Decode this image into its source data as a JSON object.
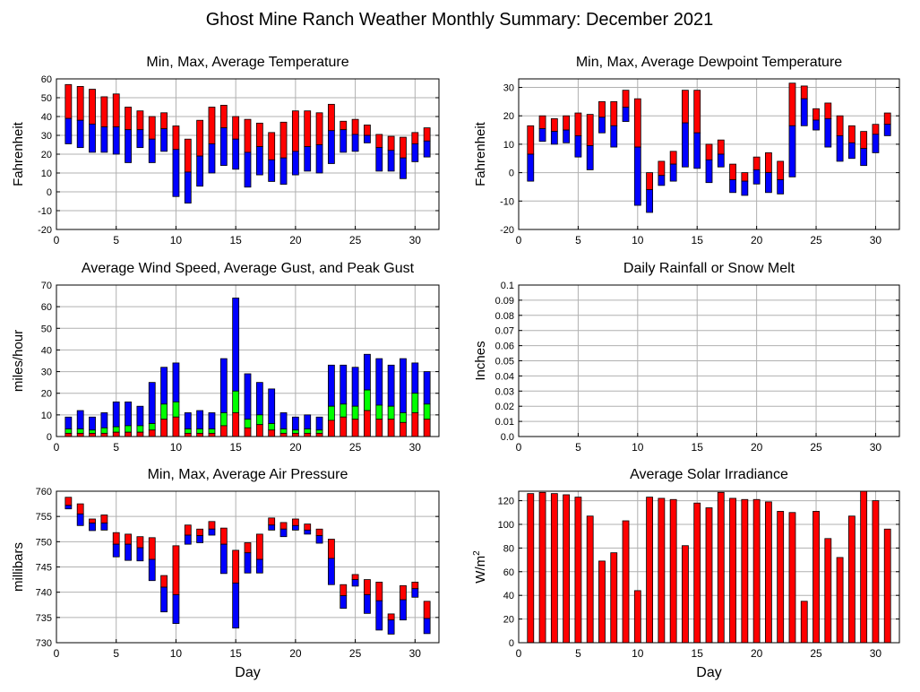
{
  "page_title": "Ghost Mine Ranch Weather Monthly Summary: December 2021",
  "colors": {
    "max": "#ff0000",
    "avg_or_min": "#0000ff",
    "gust": "#00ff00",
    "grid": "#b0b0b0",
    "frame": "#000000"
  },
  "chart_data": [
    {
      "id": "temp",
      "type": "bar",
      "title": "Min, Max, Average Temperature",
      "ylabel": "Fahrenheit",
      "xlabel": "",
      "ylim": [
        -20,
        60
      ],
      "yticks": [
        -20,
        -10,
        0,
        10,
        20,
        30,
        40,
        50,
        60
      ],
      "xlim": [
        0,
        32
      ],
      "xticks": [
        0,
        5,
        10,
        15,
        20,
        25,
        30
      ],
      "grid": true,
      "encoding": "range",
      "x": [
        1,
        2,
        3,
        4,
        5,
        6,
        7,
        8,
        9,
        10,
        11,
        12,
        13,
        14,
        15,
        16,
        17,
        18,
        19,
        20,
        21,
        22,
        23,
        24,
        25,
        26,
        27,
        28,
        29,
        30,
        31
      ],
      "series": [
        {
          "name": "Max",
          "color": "#ff0000",
          "values": [
            57,
            56,
            54.5,
            50.5,
            52,
            45,
            43,
            40,
            42,
            35,
            28,
            38,
            45,
            46,
            40,
            38.5,
            36.5,
            31.5,
            37,
            43,
            43,
            42,
            46.5,
            37.5,
            38.5,
            35.5,
            30.5,
            29.5,
            29,
            31.5,
            34
          ]
        },
        {
          "name": "Average",
          "color": "#0000ff",
          "values": [
            39,
            38,
            36,
            34.5,
            34.5,
            33,
            33,
            28,
            33.5,
            22.5,
            10.5,
            19,
            25.5,
            34,
            28,
            21,
            24,
            17,
            18,
            21.5,
            24,
            25,
            32.5,
            33,
            30.5,
            30,
            23.5,
            22,
            18,
            25.5,
            27
          ]
        },
        {
          "name": "Min",
          "color": "#0000ff",
          "values": [
            25.5,
            23.5,
            21,
            21,
            20,
            15.5,
            23.5,
            15.5,
            21.5,
            -2.5,
            -6,
            3,
            10,
            14,
            12,
            2.5,
            9,
            5.5,
            4,
            9,
            11,
            10,
            15,
            21,
            21.5,
            26,
            11,
            11,
            7,
            16,
            18.5
          ]
        }
      ]
    },
    {
      "id": "dew",
      "type": "bar",
      "title": "Min, Max, Average Dewpoint Temperature",
      "ylabel": "Fahrenheit",
      "xlabel": "",
      "ylim": [
        -20,
        33
      ],
      "yticks": [
        -20,
        -10,
        0,
        10,
        20,
        30
      ],
      "xlim": [
        0,
        32
      ],
      "xticks": [
        0,
        5,
        10,
        15,
        20,
        25,
        30
      ],
      "grid": true,
      "encoding": "range",
      "x": [
        1,
        2,
        3,
        4,
        5,
        6,
        7,
        8,
        9,
        10,
        11,
        12,
        13,
        14,
        15,
        16,
        17,
        18,
        19,
        20,
        21,
        22,
        23,
        24,
        25,
        26,
        27,
        28,
        29,
        30,
        31
      ],
      "series": [
        {
          "name": "Max",
          "color": "#ff0000",
          "values": [
            16.5,
            20,
            19,
            20,
            21,
            20.5,
            25,
            25,
            29,
            26,
            0,
            4,
            7.5,
            29,
            29,
            10,
            11.5,
            3,
            0,
            5.5,
            7,
            4,
            31.5,
            30.5,
            22.5,
            24.5,
            20,
            16.5,
            14.5,
            17,
            21
          ]
        },
        {
          "name": "Average",
          "color": "#0000ff",
          "values": [
            6.5,
            15.5,
            14.5,
            15,
            13,
            9.5,
            19.5,
            16.5,
            23,
            9,
            -6,
            -1,
            3,
            17.5,
            14,
            4.5,
            6.5,
            -2.5,
            -3,
            1,
            0,
            -2.5,
            16.5,
            26,
            18.5,
            19,
            13,
            10.5,
            8.5,
            13.5,
            17
          ]
        },
        {
          "name": "Min",
          "color": "#0000ff",
          "values": [
            -3,
            11,
            10,
            10.5,
            5.5,
            1,
            14,
            9,
            18,
            -11.5,
            -14,
            -4.5,
            -3,
            2,
            1.5,
            -3.5,
            2,
            -7,
            -8,
            -4,
            -7,
            -7.5,
            -1.5,
            16.5,
            15,
            9,
            4,
            5,
            2.5,
            7,
            13
          ]
        }
      ]
    },
    {
      "id": "wind",
      "type": "bar",
      "title": "Average Wind Speed, Average Gust, and Peak Gust",
      "ylabel": "miles/hour",
      "xlabel": "",
      "ylim": [
        0,
        70
      ],
      "yticks": [
        0,
        10,
        20,
        30,
        40,
        50,
        60,
        70
      ],
      "xlim": [
        0,
        32
      ],
      "xticks": [
        0,
        5,
        10,
        15,
        20,
        25,
        30
      ],
      "grid": true,
      "encoding": "stacked",
      "x": [
        1,
        2,
        3,
        4,
        5,
        6,
        7,
        8,
        9,
        10,
        11,
        12,
        13,
        14,
        15,
        16,
        17,
        18,
        19,
        20,
        21,
        22,
        23,
        24,
        25,
        26,
        27,
        28,
        29,
        30,
        31
      ],
      "series": [
        {
          "name": "Peak Gust",
          "color": "#0000ff",
          "values": [
            9,
            12,
            9,
            11,
            16,
            16,
            14,
            25,
            32,
            34,
            11,
            12,
            11,
            36,
            64,
            29,
            25,
            22,
            11,
            9,
            10,
            9,
            33,
            33,
            32,
            38,
            36,
            33,
            36,
            34,
            30
          ]
        },
        {
          "name": "Average Gust",
          "color": "#00ff00",
          "values": [
            3.5,
            3.5,
            3,
            4,
            4.5,
            5,
            5,
            6,
            15,
            16,
            3.5,
            3.5,
            3.5,
            11,
            21,
            8,
            10,
            6,
            3.5,
            3,
            3.5,
            3,
            14,
            15,
            14,
            21.5,
            14.5,
            14,
            11,
            20,
            15
          ]
        },
        {
          "name": "Average Wind Speed",
          "color": "#ff0000",
          "values": [
            1.5,
            1.5,
            1.5,
            1.5,
            2,
            2,
            2,
            3,
            8,
            9,
            1.5,
            1.5,
            1.5,
            5,
            11,
            4,
            5.5,
            3,
            1.5,
            1.5,
            1.5,
            1.5,
            7.5,
            9,
            8,
            12,
            8,
            8,
            6.5,
            11,
            8
          ]
        }
      ]
    },
    {
      "id": "rain",
      "type": "bar",
      "title": "Daily Rainfall or Snow Melt",
      "ylabel": "Inches",
      "xlabel": "",
      "ylim": [
        0,
        0.1
      ],
      "yticks": [
        0,
        0.01,
        0.02,
        0.03,
        0.04,
        0.05,
        0.06,
        0.07,
        0.08,
        0.09,
        0.1
      ],
      "ytick_labels": [
        "0.0",
        "0.01",
        "0.02",
        "0.03",
        "0.04",
        "0.05",
        "0.06",
        "0.07",
        "0.08",
        "0.09",
        "0.1"
      ],
      "xlim": [
        0,
        32
      ],
      "xticks": [
        0,
        5,
        10,
        15,
        20,
        25,
        30
      ],
      "grid": true,
      "encoding": "simple",
      "x": [],
      "series": []
    },
    {
      "id": "pressure",
      "type": "bar",
      "title": "Min, Max, Average Air Pressure",
      "ylabel": "millibars",
      "xlabel": "Day",
      "ylim": [
        730,
        760
      ],
      "yticks": [
        730,
        735,
        740,
        745,
        750,
        755,
        760
      ],
      "xlim": [
        0,
        32
      ],
      "xticks": [
        0,
        5,
        10,
        15,
        20,
        25,
        30
      ],
      "grid": true,
      "encoding": "range",
      "x": [
        1,
        2,
        3,
        4,
        5,
        6,
        7,
        8,
        9,
        10,
        11,
        12,
        13,
        14,
        15,
        16,
        17,
        18,
        19,
        20,
        21,
        22,
        23,
        24,
        25,
        26,
        27,
        28,
        29,
        30,
        31
      ],
      "series": [
        {
          "name": "Max",
          "color": "#ff0000",
          "values": [
            758.8,
            757.5,
            754.5,
            755.3,
            751.8,
            751.5,
            751,
            750.8,
            743.3,
            749.2,
            753.3,
            752.5,
            754,
            752.7,
            748.3,
            749.8,
            751.5,
            754.7,
            753.8,
            754.5,
            753.5,
            752.5,
            750.5,
            741.5,
            743.5,
            742.5,
            742,
            735.7,
            741.3,
            742,
            738.2
          ]
        },
        {
          "name": "Average",
          "color": "#0000ff",
          "values": [
            757.2,
            755.5,
            753.7,
            753.7,
            749.5,
            749.5,
            748.8,
            746.5,
            741,
            739.5,
            751.3,
            751.2,
            752.5,
            749.5,
            741.8,
            747.8,
            746.5,
            753.3,
            752.5,
            753.2,
            752.3,
            751.2,
            746.7,
            739.3,
            742.5,
            739.5,
            738.3,
            734.5,
            738.5,
            740.7,
            734.8
          ]
        },
        {
          "name": "Min",
          "color": "#0000ff",
          "values": [
            756.5,
            753.2,
            752.2,
            752.3,
            747,
            746.3,
            746.2,
            742.3,
            736.1,
            733.8,
            749.5,
            749.8,
            751.3,
            743.7,
            732.9,
            743.8,
            743.8,
            752.3,
            751,
            752.3,
            751.5,
            749.7,
            741.5,
            736.8,
            741.2,
            735.8,
            732.5,
            731.7,
            734.5,
            739,
            731.8
          ]
        }
      ]
    },
    {
      "id": "solar",
      "type": "bar",
      "title": "Average Solar Irradiance",
      "ylabel": "W/m",
      "ylabel_superscript": "2",
      "xlabel": "Day",
      "ylim": [
        0,
        128
      ],
      "yticks": [
        0,
        20,
        40,
        60,
        80,
        100,
        120
      ],
      "xlim": [
        0,
        32
      ],
      "xticks": [
        0,
        5,
        10,
        15,
        20,
        25,
        30
      ],
      "grid": true,
      "encoding": "simple",
      "x": [
        1,
        2,
        3,
        4,
        5,
        6,
        7,
        8,
        9,
        10,
        11,
        12,
        13,
        14,
        15,
        16,
        17,
        18,
        19,
        20,
        21,
        22,
        23,
        24,
        25,
        26,
        27,
        28,
        29,
        30,
        31
      ],
      "series": [
        {
          "name": "Average Solar Irradiance",
          "color": "#ff0000",
          "values": [
            126,
            127,
            126,
            125,
            123,
            107,
            69,
            76,
            103,
            44,
            123,
            122,
            121,
            82,
            118,
            114,
            127,
            122,
            121,
            121,
            119,
            111,
            110,
            35,
            111,
            88,
            72,
            107,
            128,
            120,
            96
          ]
        }
      ]
    }
  ]
}
